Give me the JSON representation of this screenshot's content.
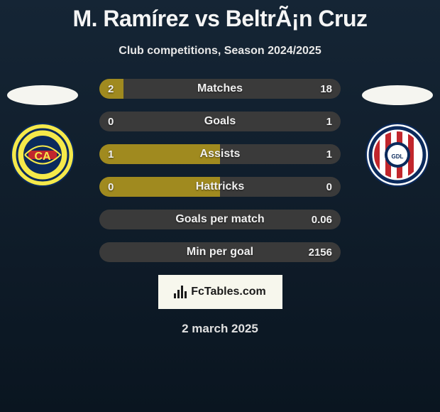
{
  "title": "M. Ramírez vs BeltrÃ¡n Cruz",
  "subtitle": "Club competitions, Season 2024/2025",
  "date": "2 march 2025",
  "watermark": "FcTables.com",
  "colors": {
    "left": "#a08a1f",
    "right": "#3a3a3a",
    "background": "#0a1520",
    "text": "#f0f0f0"
  },
  "bars": [
    {
      "label": "Matches",
      "left": "2",
      "right": "18",
      "left_pct": 10,
      "right_pct": 90
    },
    {
      "label": "Goals",
      "left": "0",
      "right": "1",
      "left_pct": 0,
      "right_pct": 100
    },
    {
      "label": "Assists",
      "left": "1",
      "right": "1",
      "left_pct": 50,
      "right_pct": 50
    },
    {
      "label": "Hattricks",
      "left": "0",
      "right": "0",
      "left_pct": 50,
      "right_pct": 50
    },
    {
      "label": "Goals per match",
      "left": "",
      "right": "0.06",
      "left_pct": 0,
      "right_pct": 100
    },
    {
      "label": "Min per goal",
      "left": "",
      "right": "2156",
      "left_pct": 0,
      "right_pct": 100
    }
  ],
  "crest_left": {
    "bg": "#f5e94a",
    "ring": "#0b2a5c",
    "inner": "#c1262c",
    "letters": "CA"
  },
  "crest_right": {
    "bg": "#ffffff",
    "ring": "#0b2a5c",
    "stripes": [
      "#c1262c",
      "#ffffff"
    ],
    "center": "#0b2a5c"
  }
}
